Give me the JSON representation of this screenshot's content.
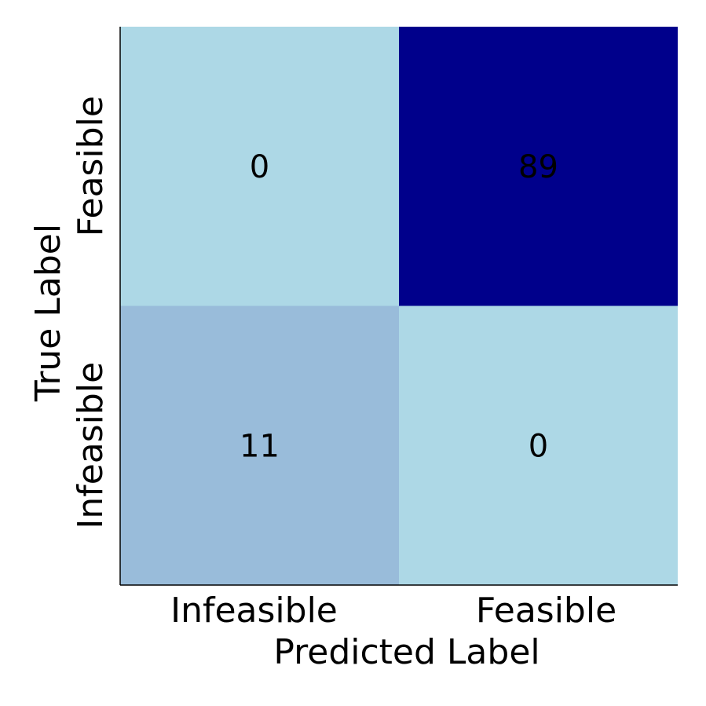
{
  "chart_data": {
    "type": "heatmap",
    "title": "",
    "xlabel": "Predicted Label",
    "ylabel": "True Label",
    "x_categories": [
      "Infeasible",
      "Feasible"
    ],
    "y_categories": [
      "Infeasible",
      "Feasible"
    ],
    "cells": [
      {
        "true": "Feasible",
        "predicted": "Infeasible",
        "value": 0,
        "color": "#add8e6"
      },
      {
        "true": "Feasible",
        "predicted": "Feasible",
        "value": 89,
        "color": "#00008b"
      },
      {
        "true": "Infeasible",
        "predicted": "Infeasible",
        "value": 11,
        "color": "#99bcda"
      },
      {
        "true": "Infeasible",
        "predicted": "Feasible",
        "value": 0,
        "color": "#add8e6"
      }
    ],
    "grid": false,
    "legend": "none"
  }
}
